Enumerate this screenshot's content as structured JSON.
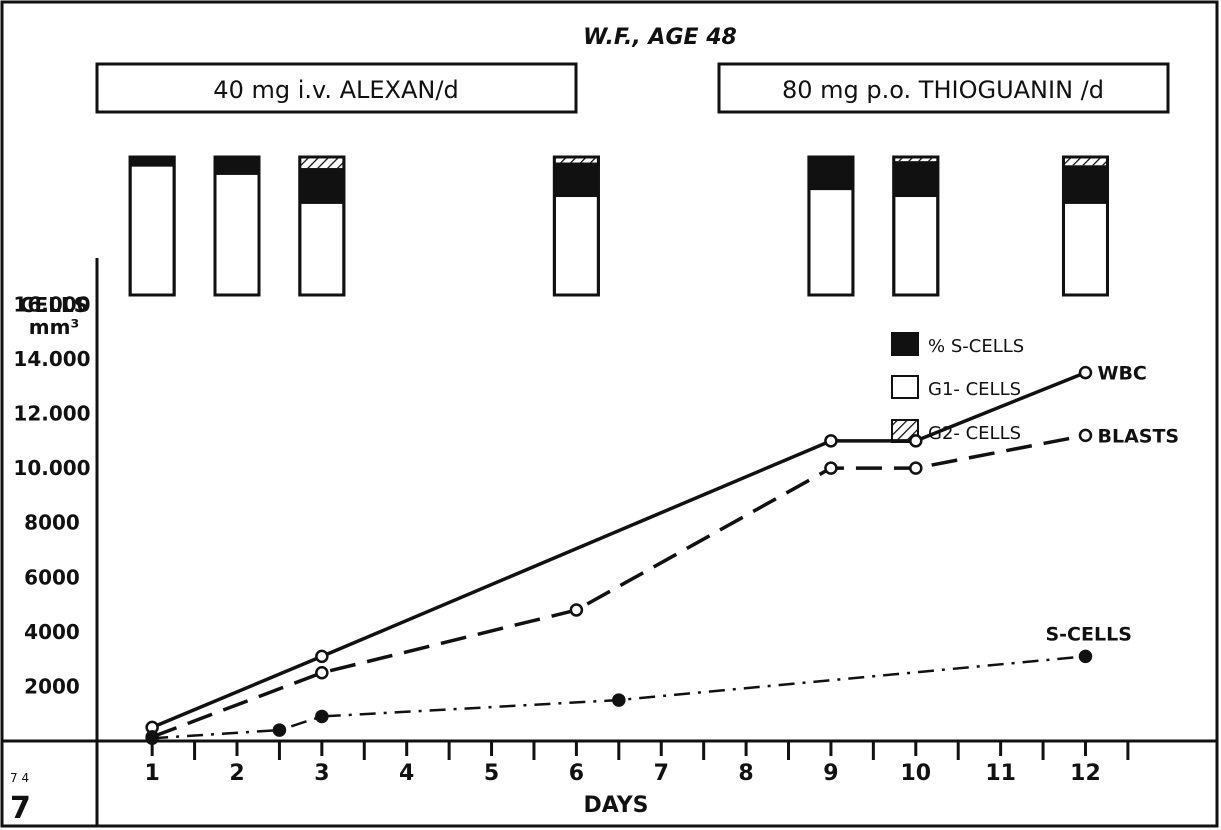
{
  "chart_data": {
    "type": "line",
    "title": "W.F., AGE 48",
    "treatments": [
      {
        "label": "40 mg i.v. ALEXAN/d"
      },
      {
        "label": "80 mg p.o. THIOGUANIN /d"
      }
    ],
    "ylabel": [
      "CELLS",
      "mm³"
    ],
    "xlabel": "DAYS",
    "x_ticks": [
      "1",
      "2",
      "3",
      "4",
      "5",
      "6",
      "7",
      "8",
      "9",
      "10",
      "11",
      "12"
    ],
    "y_ticks": [
      "16.000",
      "14.000",
      "12.000",
      "10.000",
      "8000",
      "6000",
      "4000",
      "2000"
    ],
    "y_tick_values": [
      16000,
      14000,
      12000,
      10000,
      8000,
      6000,
      4000,
      2000
    ],
    "xlim": [
      0.35,
      13.55
    ],
    "ylim": [
      0,
      17700
    ],
    "series": [
      {
        "name": "WBC",
        "style": "solid",
        "marker": "open",
        "points": [
          [
            1,
            500
          ],
          [
            3,
            3100
          ],
          [
            9,
            11000
          ],
          [
            10,
            11000
          ],
          [
            12,
            13500
          ]
        ]
      },
      {
        "name": "BLASTS",
        "style": "dashed",
        "marker": "open",
        "points": [
          [
            1,
            150
          ],
          [
            3,
            2500
          ],
          [
            6,
            4800
          ],
          [
            9,
            10000
          ],
          [
            10,
            10000
          ],
          [
            12,
            11200
          ]
        ]
      },
      {
        "name": "S-CELLS",
        "style": "dashdot",
        "marker": "filled",
        "points": [
          [
            1,
            100
          ],
          [
            2.5,
            400
          ],
          [
            3,
            900
          ],
          [
            6.5,
            1500
          ],
          [
            12,
            3100
          ]
        ]
      }
    ],
    "cell_bars": {
      "legend": [
        {
          "key": "s",
          "label": "% S-CELLS"
        },
        {
          "key": "g1",
          "label": "G1- CELLS"
        },
        {
          "key": "g2",
          "label": "G2- CELLS"
        }
      ],
      "bars": [
        {
          "day": 1,
          "g2": 0,
          "s": 7
        },
        {
          "day": 2,
          "g2": 0,
          "s": 13
        },
        {
          "day": 3,
          "g2": 8,
          "s": 26
        },
        {
          "day": 6,
          "g2": 4,
          "s": 25
        },
        {
          "day": 9,
          "g2": 0,
          "s": 24
        },
        {
          "day": 10,
          "g2": 3,
          "s": 26
        },
        {
          "day": 12,
          "g2": 6,
          "s": 28
        }
      ]
    },
    "corner_mark": {
      "number": "7",
      "superscript": "7 4"
    },
    "grid": false
  }
}
